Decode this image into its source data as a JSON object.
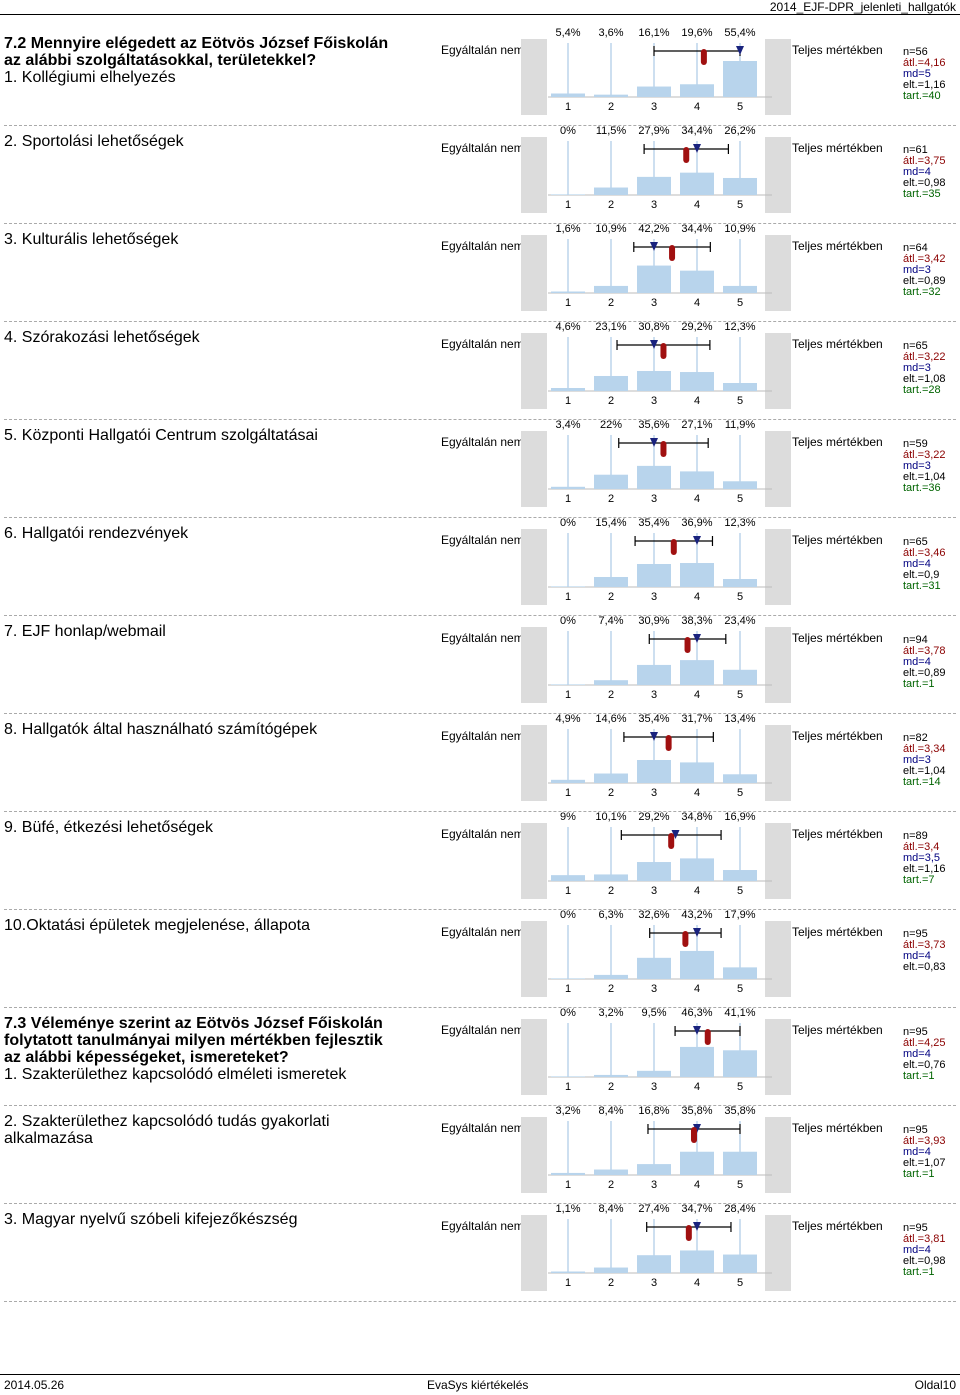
{
  "header": {
    "title": "2014_EJF-DPR_jelenleti_hallgatók"
  },
  "labels": {
    "left": "Egyáltalán nem",
    "right": "Teljes mértékben"
  },
  "axis": [
    "1",
    "2",
    "3",
    "4",
    "5"
  ],
  "rows": [
    {
      "section": "7.2 Mennyire elégedett az Eötvös József Főiskolán az alábbi  szolgáltatásokkal, területekkel?",
      "question": "1. Kollégiumi elhelyezés",
      "pcts": [
        "5,4%",
        "3,6%",
        "16,1%",
        "19,6%",
        "55,4%"
      ],
      "vals": [
        5.4,
        3.6,
        16.1,
        19.6,
        55.4
      ],
      "n": "n=56",
      "atl": "átl.=4,16",
      "md": "md=5",
      "elt": "elt.=1,16",
      "tart": "tart.=40",
      "mean": 4.16,
      "median": 5,
      "sd": 1.16
    },
    {
      "question": "2. Sportolási lehetőségek",
      "pcts": [
        "0%",
        "11,5%",
        "27,9%",
        "34,4%",
        "26,2%"
      ],
      "vals": [
        0,
        11.5,
        27.9,
        34.4,
        26.2
      ],
      "n": "n=61",
      "atl": "átl.=3,75",
      "md": "md=4",
      "elt": "elt.=0,98",
      "tart": "tart.=35",
      "mean": 3.75,
      "median": 4,
      "sd": 0.98
    },
    {
      "question": "3. Kulturális lehetőségek",
      "pcts": [
        "1,6%",
        "10,9%",
        "42,2%",
        "34,4%",
        "10,9%"
      ],
      "vals": [
        1.6,
        10.9,
        42.2,
        34.4,
        10.9
      ],
      "n": "n=64",
      "atl": "átl.=3,42",
      "md": "md=3",
      "elt": "elt.=0,89",
      "tart": "tart.=32",
      "mean": 3.42,
      "median": 3,
      "sd": 0.89
    },
    {
      "question": "4. Szórakozási lehetőségek",
      "pcts": [
        "4,6%",
        "23,1%",
        "30,8%",
        "29,2%",
        "12,3%"
      ],
      "vals": [
        4.6,
        23.1,
        30.8,
        29.2,
        12.3
      ],
      "n": "n=65",
      "atl": "átl.=3,22",
      "md": "md=3",
      "elt": "elt.=1,08",
      "tart": "tart.=28",
      "mean": 3.22,
      "median": 3,
      "sd": 1.08
    },
    {
      "question": "5. Központi Hallgatói Centrum szolgáltatásai",
      "pcts": [
        "3,4%",
        "22%",
        "35,6%",
        "27,1%",
        "11,9%"
      ],
      "vals": [
        3.4,
        22,
        35.6,
        27.1,
        11.9
      ],
      "n": "n=59",
      "atl": "átl.=3,22",
      "md": "md=3",
      "elt": "elt.=1,04",
      "tart": "tart.=36",
      "mean": 3.22,
      "median": 3,
      "sd": 1.04
    },
    {
      "question": "6. Hallgatói rendezvények",
      "pcts": [
        "0%",
        "15,4%",
        "35,4%",
        "36,9%",
        "12,3%"
      ],
      "vals": [
        0,
        15.4,
        35.4,
        36.9,
        12.3
      ],
      "n": "n=65",
      "atl": "átl.=3,46",
      "md": "md=4",
      "elt": "elt.=0,9",
      "tart": "tart.=31",
      "mean": 3.46,
      "median": 4,
      "sd": 0.9
    },
    {
      "question": "7. EJF honlap/webmail",
      "pcts": [
        "0%",
        "7,4%",
        "30,9%",
        "38,3%",
        "23,4%"
      ],
      "vals": [
        0,
        7.4,
        30.9,
        38.3,
        23.4
      ],
      "n": "n=94",
      "atl": "átl.=3,78",
      "md": "md=4",
      "elt": "elt.=0,89",
      "tart": "tart.=1",
      "mean": 3.78,
      "median": 4,
      "sd": 0.89
    },
    {
      "question": "8. Hallgatók által használható számítógépek",
      "pcts": [
        "4,9%",
        "14,6%",
        "35,4%",
        "31,7%",
        "13,4%"
      ],
      "vals": [
        4.9,
        14.6,
        35.4,
        31.7,
        13.4
      ],
      "n": "n=82",
      "atl": "átl.=3,34",
      "md": "md=3",
      "elt": "elt.=1,04",
      "tart": "tart.=14",
      "mean": 3.34,
      "median": 3,
      "sd": 1.04
    },
    {
      "question": "9. Büfé, étkezési lehetőségek",
      "pcts": [
        "9%",
        "10,1%",
        "29,2%",
        "34,8%",
        "16,9%"
      ],
      "vals": [
        9,
        10.1,
        29.2,
        34.8,
        16.9
      ],
      "n": "n=89",
      "atl": "átl.=3,4",
      "md": "md=3,5",
      "elt": "elt.=1,16",
      "tart": "tart.=7",
      "mean": 3.4,
      "median": 3.5,
      "sd": 1.16
    },
    {
      "question": "10.Oktatási épületek megjelenése, állapota",
      "pcts": [
        "0%",
        "6,3%",
        "32,6%",
        "43,2%",
        "17,9%"
      ],
      "vals": [
        0,
        6.3,
        32.6,
        43.2,
        17.9
      ],
      "n": "n=95",
      "atl": "átl.=3,73",
      "md": "md=4",
      "elt": "elt.=0,83",
      "tart": "",
      "mean": 3.73,
      "median": 4,
      "sd": 0.83
    },
    {
      "section": "7.3 Véleménye szerint az Eötvös József Főiskolán folytatott tanulmányai milyen mértékben fejlesztik az alábbi képességeket, ismereteket?",
      "question": "1. Szakterülethez kapcsolódó elméleti ismeretek",
      "pcts": [
        "0%",
        "3,2%",
        "9,5%",
        "46,3%",
        "41,1%"
      ],
      "vals": [
        0,
        3.2,
        9.5,
        46.3,
        41.1
      ],
      "n": "n=95",
      "atl": "átl.=4,25",
      "md": "md=4",
      "elt": "elt.=0,76",
      "tart": "tart.=1",
      "mean": 4.25,
      "median": 4,
      "sd": 0.76
    },
    {
      "question": "2. Szakterülethez kapcsolódó tudás gyakorlati alkalmazása",
      "pcts": [
        "3,2%",
        "8,4%",
        "16,8%",
        "35,8%",
        "35,8%"
      ],
      "vals": [
        3.2,
        8.4,
        16.8,
        35.8,
        35.8
      ],
      "n": "n=95",
      "atl": "átl.=3,93",
      "md": "md=4",
      "elt": "elt.=1,07",
      "tart": "tart.=1",
      "mean": 3.93,
      "median": 4,
      "sd": 1.07
    },
    {
      "question": "3. Magyar nyelvű szóbeli kifejezőkészség",
      "pcts": [
        "1,1%",
        "8,4%",
        "27,4%",
        "34,7%",
        "28,4%"
      ],
      "vals": [
        1.1,
        8.4,
        27.4,
        34.7,
        28.4
      ],
      "n": "n=95",
      "atl": "átl.=3,81",
      "md": "md=4",
      "elt": "elt.=0,98",
      "tart": "tart.=1",
      "mean": 3.81,
      "median": 4,
      "sd": 0.98
    }
  ],
  "footer": {
    "date": "2014.05.26",
    "app": "EvaSys kiértékelés",
    "page": "Oldal10"
  },
  "colors": {
    "bar": "#b8d4ec",
    "mean": "#a01010",
    "median": "#1a237e",
    "gray": "#dcdcdc"
  }
}
